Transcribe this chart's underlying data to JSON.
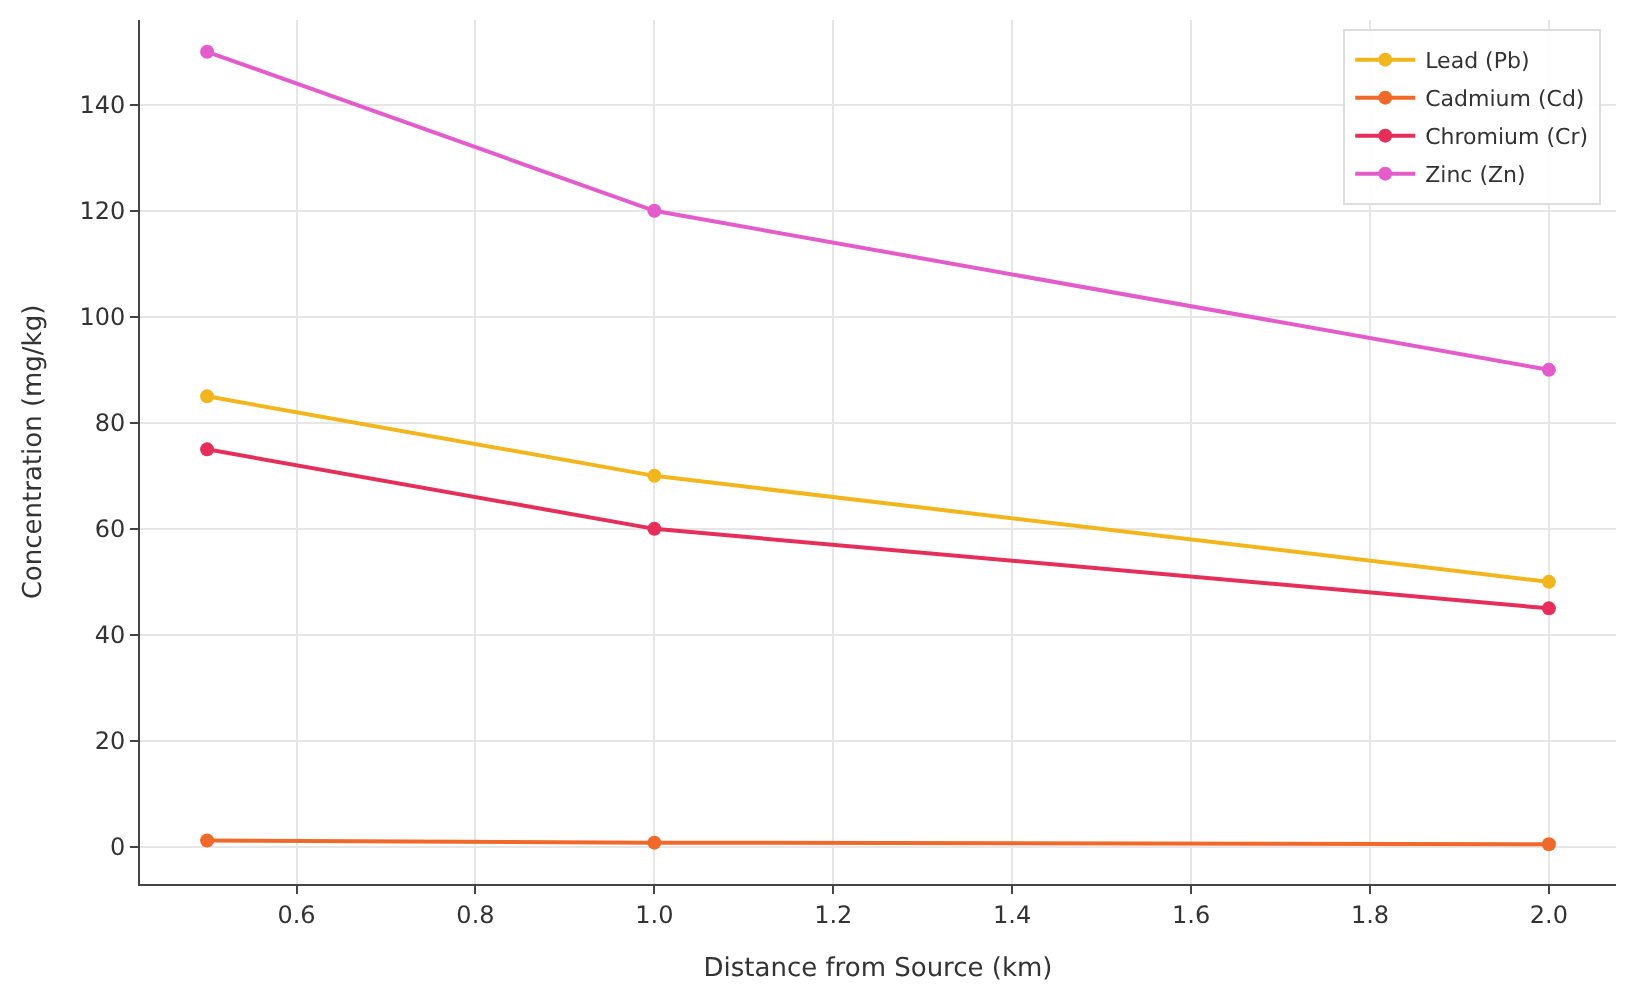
{
  "chart_data": {
    "type": "line",
    "xlabel": "Distance from Source (km)",
    "ylabel": "Concentration (mg/kg)",
    "x": [
      0.5,
      1.0,
      2.0
    ],
    "series": [
      {
        "name": "Lead (Pb)",
        "color": "#f2b51c",
        "values": [
          85,
          70,
          50
        ]
      },
      {
        "name": "Cadmium (Cd)",
        "color": "#f0692a",
        "values": [
          1.2,
          0.8,
          0.5
        ]
      },
      {
        "name": "Chromium (Cr)",
        "color": "#e62e5a",
        "values": [
          75,
          60,
          45
        ]
      },
      {
        "name": "Zinc (Zn)",
        "color": "#e45ccb",
        "values": [
          150,
          120,
          90
        ]
      }
    ],
    "xlim": [
      0.425,
      2.075
    ],
    "xticks": [
      0.6,
      0.8,
      {
        "value": 1,
        "label": "1.0"
      },
      1.2,
      1.4,
      1.6,
      1.8,
      {
        "value": 2,
        "label": "2.0"
      }
    ],
    "ylim": [
      -7,
      156
    ],
    "yticks": [
      0,
      20,
      40,
      60,
      80,
      100,
      120,
      140
    ],
    "grid": true,
    "legend": "top right",
    "marker": "circle",
    "line_style": "solid"
  }
}
